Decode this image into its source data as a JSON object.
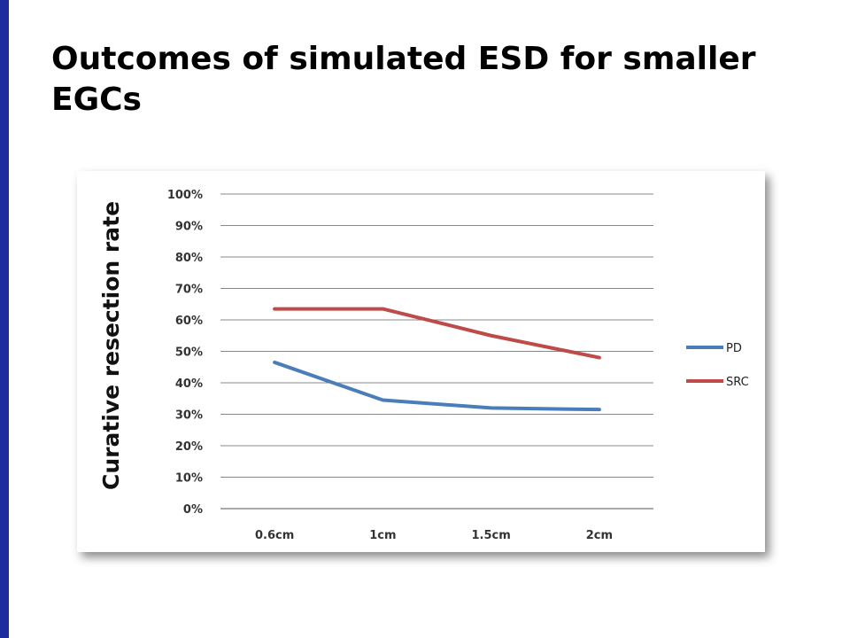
{
  "slide": {
    "title": "Outcomes of simulated ESD for smaller EGCs"
  },
  "colors": {
    "left_bar": "#1f2c9e",
    "pd": "#4a7ebb",
    "src": "#be4b48",
    "grid": "#888888"
  },
  "chart_data": {
    "type": "line",
    "categories": [
      "0.6cm",
      "1cm",
      "1.5cm",
      "2cm"
    ],
    "series": [
      {
        "name": "PD",
        "values": [
          46.5,
          34.5,
          32,
          31.5
        ]
      },
      {
        "name": "SRC",
        "values": [
          63.5,
          63.5,
          55,
          48
        ]
      }
    ],
    "ylabel": "Curative resection rate",
    "xlabel": "",
    "ylim": [
      0,
      100
    ],
    "yticks": [
      "0%",
      "10%",
      "20%",
      "30%",
      "40%",
      "50%",
      "60%",
      "70%",
      "80%",
      "90%",
      "100%"
    ],
    "grid": true,
    "legend": "right"
  }
}
